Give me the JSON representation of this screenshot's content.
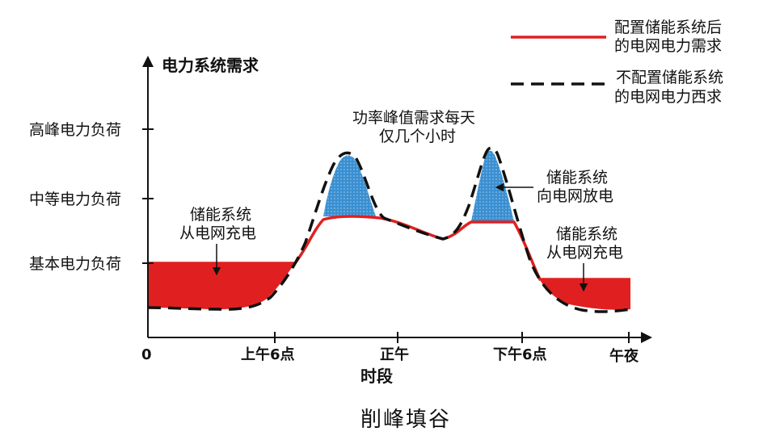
{
  "colors": {
    "with_storage": "#e02020",
    "without_storage": "#111111",
    "charge_fill": "#e02020",
    "discharge_fill": "#3a8fd0"
  },
  "axes": {
    "y_title": "电力系统需求",
    "x_title": "时段",
    "y_levels": [
      "高峰电力负荷",
      "中等电力负荷",
      "基本电力负荷"
    ],
    "x_ticks": [
      "0",
      "上午6点",
      "正午",
      "下午6点",
      "午夜"
    ]
  },
  "annotations": {
    "peak_line1": "功率峰值需求每天",
    "peak_line2": "仅几个小时",
    "charge_left_line1": "储能系统",
    "charge_left_line2": "从电网充电",
    "discharge_line1": "储能系统",
    "discharge_line2": "向电网放电",
    "charge_right_line1": "储能系统",
    "charge_right_line2": "从电网充电"
  },
  "legend": {
    "with_line1": "配置储能系统后",
    "with_line2": "的电网电力需求",
    "without_line1": "不配置储能系统",
    "without_line2": "的电网电力西求"
  },
  "caption": "削峰填谷"
}
